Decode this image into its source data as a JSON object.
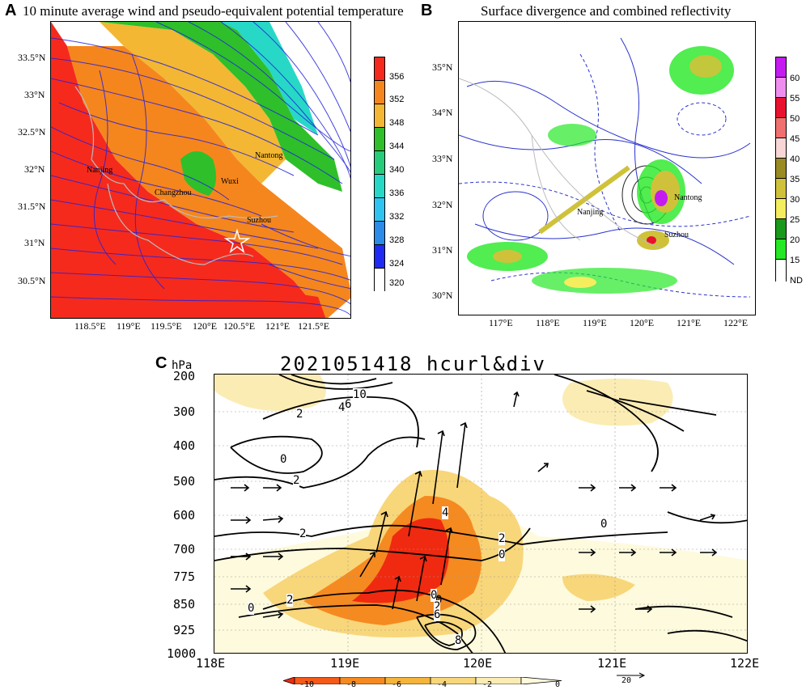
{
  "panels": {
    "a": {
      "letter": "A",
      "title": "10 minute average wind and pseudo-equivalent potential temperature",
      "y_ticks": [
        "33.5°N",
        "33°N",
        "32.5°N",
        "32°N",
        "31.5°N",
        "31°N",
        "30.5°N"
      ],
      "x_ticks": [
        "118.5°E",
        "119°E",
        "119.5°E",
        "120°E",
        "120.5°E",
        "121°E",
        "121.5°E"
      ],
      "places": [
        "Nanjing",
        "Changzhou",
        "Wuxi",
        "Nantong",
        "Suzhou"
      ],
      "colorbar": {
        "labels": [
          "356",
          "352",
          "348",
          "344",
          "340",
          "336",
          "332",
          "328",
          "324",
          "320"
        ],
        "colors": [
          "#f52a1d",
          "#f5861d",
          "#f3b733",
          "#2fbf2a",
          "#27cc7a",
          "#27d8c7",
          "#2fc4f0",
          "#2a8be9",
          "#1f2bf2",
          "#ffffff"
        ]
      }
    },
    "b": {
      "letter": "B",
      "title": "Surface divergence and combined reflectivity",
      "y_ticks": [
        "35°N",
        "34°N",
        "33°N",
        "32°N",
        "31°N",
        "30°N"
      ],
      "x_ticks": [
        "117°E",
        "118°E",
        "119°E",
        "120°E",
        "121°E",
        "122°E"
      ],
      "places": [
        "Nanjing",
        "Nantong",
        "Suzhou"
      ],
      "colorbar": {
        "labels": [
          "60",
          "55",
          "50",
          "45",
          "40",
          "35",
          "30",
          "25",
          "20",
          "15",
          "ND"
        ],
        "colors": [
          "#c41cf0",
          "#f08ef0",
          "#e8122e",
          "#f07070",
          "#f8d6d6",
          "#9a8a22",
          "#cfc23a",
          "#f4ee5e",
          "#1a9a1a",
          "#26e826",
          "#ffffff"
        ]
      }
    },
    "c": {
      "letter": "C",
      "title": "2021051418 hcurl&div",
      "y_unit": "hPa",
      "y_ticks": [
        "200",
        "300",
        "400",
        "500",
        "600",
        "700",
        "775",
        "850",
        "925",
        "1000"
      ],
      "x_ticks": [
        "118E",
        "119E",
        "120E",
        "121E",
        "122E"
      ],
      "contour_labels": [
        "10",
        "6",
        "4",
        "2",
        "0",
        "0",
        "2",
        "2",
        "4",
        "2",
        "0",
        "0",
        "0",
        "2",
        "0",
        "2",
        "6",
        "8"
      ],
      "colorbar": {
        "labels": [
          "-10",
          "-8",
          "-6",
          "-4",
          "-2",
          "0"
        ],
        "colors": [
          "#f02a10",
          "#f55a18",
          "#f58a20",
          "#f5b43a",
          "#f8d67a",
          "#fbecb4",
          "#fefadd"
        ]
      },
      "vector_ref": "20",
      "chart_data": {
        "type": "contour-vector",
        "title": "2021051418 hcurl&div",
        "x": [
          "118E",
          "119E",
          "120E",
          "121E",
          "122E"
        ],
        "y": [
          200,
          300,
          400,
          500,
          600,
          700,
          775,
          850,
          925,
          1000
        ],
        "ylabel": "hPa",
        "shaded_range": [
          -10,
          0
        ]
      }
    }
  },
  "colors": {
    "streamline": "#2222dd",
    "border": "#bbbbbb",
    "contour": "#000000"
  }
}
